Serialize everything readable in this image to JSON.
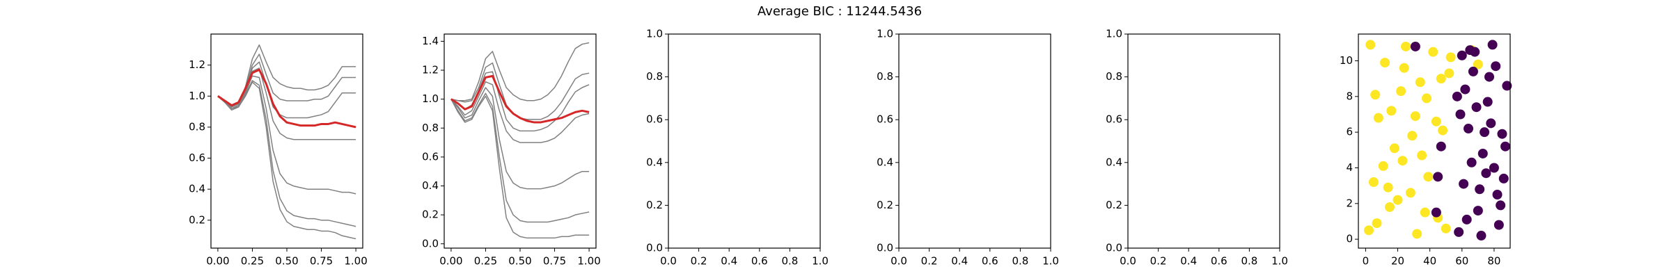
{
  "title": "Average BIC : 11244.5436",
  "chart_data": [
    {
      "type": "line",
      "x": [
        0,
        0.05,
        0.1,
        0.15,
        0.2,
        0.25,
        0.3,
        0.35,
        0.4,
        0.45,
        0.5,
        0.55,
        0.6,
        0.65,
        0.7,
        0.75,
        0.8,
        0.85,
        0.9,
        0.95,
        1
      ],
      "xlim": [
        -0.05,
        1.05
      ],
      "xticks": [
        {
          "value": 0,
          "label": "0.00"
        },
        {
          "value": 0.25,
          "label": "0.25"
        },
        {
          "value": 0.5,
          "label": "0.50"
        },
        {
          "value": 0.75,
          "label": "0.75"
        },
        {
          "value": 1,
          "label": "1.00"
        }
      ],
      "ylim": [
        0.02,
        1.4
      ],
      "yticks": [
        0.2,
        0.4,
        0.6,
        0.8,
        {
          "value": 1,
          "label": "1.0"
        },
        1.2
      ],
      "series": [
        {
          "color": "#808080",
          "values": [
            1.0,
            0.97,
            0.93,
            0.95,
            1.06,
            1.24,
            1.33,
            1.22,
            1.12,
            1.08,
            1.06,
            1.05,
            1.05,
            1.04,
            1.04,
            1.05,
            1.07,
            1.12,
            1.19,
            1.19,
            1.19
          ]
        },
        {
          "color": "#808080",
          "values": [
            1.0,
            0.97,
            0.93,
            0.95,
            1.05,
            1.2,
            1.27,
            1.14,
            1.02,
            0.98,
            0.97,
            0.97,
            0.97,
            0.97,
            0.98,
            0.98,
            1.0,
            1.06,
            1.12,
            1.12,
            1.12
          ]
        },
        {
          "color": "#808080",
          "values": [
            1.0,
            0.97,
            0.93,
            0.95,
            1.04,
            1.18,
            1.22,
            1.08,
            0.93,
            0.88,
            0.86,
            0.86,
            0.86,
            0.86,
            0.87,
            0.88,
            0.9,
            0.96,
            1.02,
            1.02,
            1.02
          ]
        },
        {
          "color": "#808080",
          "values": [
            1.0,
            0.96,
            0.92,
            0.94,
            1.03,
            1.16,
            1.18,
            1.02,
            0.84,
            0.76,
            0.73,
            0.72,
            0.72,
            0.72,
            0.72,
            0.72,
            0.72,
            0.72,
            0.72,
            0.72,
            0.72
          ]
        },
        {
          "color": "#808080",
          "values": [
            1.0,
            0.96,
            0.92,
            0.94,
            1.02,
            1.13,
            1.12,
            0.92,
            0.65,
            0.5,
            0.44,
            0.42,
            0.41,
            0.4,
            0.4,
            0.4,
            0.4,
            0.39,
            0.38,
            0.38,
            0.37
          ]
        },
        {
          "color": "#808080",
          "values": [
            1.0,
            0.96,
            0.92,
            0.93,
            1.01,
            1.1,
            1.07,
            0.85,
            0.52,
            0.34,
            0.26,
            0.23,
            0.22,
            0.21,
            0.21,
            0.2,
            0.2,
            0.19,
            0.18,
            0.17,
            0.16
          ]
        },
        {
          "color": "#808080",
          "values": [
            1.0,
            0.96,
            0.91,
            0.93,
            1.0,
            1.09,
            1.05,
            0.8,
            0.45,
            0.27,
            0.19,
            0.16,
            0.15,
            0.14,
            0.14,
            0.13,
            0.13,
            0.12,
            0.1,
            0.09,
            0.08
          ]
        },
        {
          "color": "#d62728",
          "width": 3,
          "values": [
            1.0,
            0.97,
            0.94,
            0.96,
            1.05,
            1.15,
            1.17,
            1.08,
            0.95,
            0.87,
            0.83,
            0.82,
            0.81,
            0.81,
            0.81,
            0.82,
            0.82,
            0.83,
            0.82,
            0.81,
            0.8
          ]
        }
      ]
    },
    {
      "type": "line",
      "x": [
        0,
        0.05,
        0.1,
        0.15,
        0.2,
        0.25,
        0.3,
        0.35,
        0.4,
        0.45,
        0.5,
        0.55,
        0.6,
        0.65,
        0.7,
        0.75,
        0.8,
        0.85,
        0.9,
        0.95,
        1
      ],
      "xlim": [
        -0.05,
        1.05
      ],
      "xticks": [
        {
          "value": 0,
          "label": "0.00"
        },
        {
          "value": 0.25,
          "label": "0.25"
        },
        {
          "value": 0.5,
          "label": "0.50"
        },
        {
          "value": 0.75,
          "label": "0.75"
        },
        {
          "value": 1,
          "label": "1.00"
        }
      ],
      "ylim": [
        -0.03,
        1.45
      ],
      "yticks": [
        {
          "value": 0,
          "label": "0.0"
        },
        0.2,
        0.4,
        0.6,
        0.8,
        {
          "value": 1,
          "label": "1.0"
        },
        1.2,
        1.4
      ],
      "series": [
        {
          "color": "#808080",
          "values": [
            1.0,
            0.99,
            0.99,
            1.0,
            1.12,
            1.28,
            1.33,
            1.2,
            1.08,
            1.03,
            1.0,
            0.99,
            0.99,
            1.0,
            1.03,
            1.08,
            1.16,
            1.26,
            1.35,
            1.38,
            1.39
          ]
        },
        {
          "color": "#808080",
          "values": [
            1.0,
            0.99,
            0.98,
            0.99,
            1.08,
            1.22,
            1.25,
            1.1,
            0.96,
            0.9,
            0.87,
            0.86,
            0.86,
            0.86,
            0.88,
            0.92,
            0.98,
            1.06,
            1.14,
            1.17,
            1.18
          ]
        },
        {
          "color": "#808080",
          "values": [
            1.0,
            0.97,
            0.93,
            0.96,
            1.06,
            1.18,
            1.19,
            1.02,
            0.86,
            0.8,
            0.78,
            0.78,
            0.78,
            0.79,
            0.81,
            0.85,
            0.9,
            0.98,
            1.05,
            1.08,
            1.1
          ]
        },
        {
          "color": "#808080",
          "values": [
            1.0,
            0.95,
            0.89,
            0.92,
            1.02,
            1.12,
            1.1,
            0.92,
            0.78,
            0.72,
            0.7,
            0.7,
            0.7,
            0.7,
            0.71,
            0.73,
            0.77,
            0.82,
            0.87,
            0.89,
            0.9
          ]
        },
        {
          "color": "#808080",
          "values": [
            1.0,
            0.94,
            0.87,
            0.89,
            0.99,
            1.08,
            1.02,
            0.72,
            0.5,
            0.42,
            0.39,
            0.38,
            0.38,
            0.38,
            0.39,
            0.4,
            0.42,
            0.45,
            0.48,
            0.5,
            0.5
          ]
        },
        {
          "color": "#808080",
          "values": [
            1.0,
            0.92,
            0.85,
            0.87,
            0.96,
            1.04,
            0.95,
            0.6,
            0.3,
            0.2,
            0.16,
            0.15,
            0.15,
            0.15,
            0.15,
            0.16,
            0.17,
            0.18,
            0.2,
            0.21,
            0.22
          ]
        },
        {
          "color": "#808080",
          "values": [
            1.0,
            0.91,
            0.84,
            0.86,
            0.95,
            1.02,
            0.92,
            0.52,
            0.18,
            0.08,
            0.05,
            0.04,
            0.04,
            0.04,
            0.04,
            0.04,
            0.05,
            0.05,
            0.06,
            0.06,
            0.06
          ]
        },
        {
          "color": "#d62728",
          "width": 3,
          "values": [
            1.0,
            0.97,
            0.93,
            0.95,
            1.05,
            1.15,
            1.16,
            1.05,
            0.95,
            0.9,
            0.87,
            0.85,
            0.84,
            0.84,
            0.85,
            0.86,
            0.87,
            0.89,
            0.91,
            0.92,
            0.91
          ]
        }
      ]
    },
    {
      "type": "empty",
      "xlim": [
        0,
        1
      ],
      "ylim": [
        0,
        1
      ],
      "xticks": [
        {
          "value": 0,
          "label": "0.0"
        },
        0.2,
        0.4,
        0.6,
        0.8,
        {
          "value": 1,
          "label": "1.0"
        }
      ],
      "yticks": [
        {
          "value": 0,
          "label": "0.0"
        },
        0.2,
        0.4,
        0.6,
        0.8,
        {
          "value": 1,
          "label": "1.0"
        }
      ]
    },
    {
      "type": "empty",
      "xlim": [
        0,
        1
      ],
      "ylim": [
        0,
        1
      ],
      "xticks": [
        {
          "value": 0,
          "label": "0.0"
        },
        0.2,
        0.4,
        0.6,
        0.8,
        {
          "value": 1,
          "label": "1.0"
        }
      ],
      "yticks": [
        {
          "value": 0,
          "label": "0.0"
        },
        0.2,
        0.4,
        0.6,
        0.8,
        {
          "value": 1,
          "label": "1.0"
        }
      ]
    },
    {
      "type": "empty",
      "xlim": [
        0,
        1
      ],
      "ylim": [
        0,
        1
      ],
      "xticks": [
        {
          "value": 0,
          "label": "0.0"
        },
        0.2,
        0.4,
        0.6,
        0.8,
        {
          "value": 1,
          "label": "1.0"
        }
      ],
      "yticks": [
        {
          "value": 0,
          "label": "0.0"
        },
        0.2,
        0.4,
        0.6,
        0.8,
        {
          "value": 1,
          "label": "1.0"
        }
      ]
    },
    {
      "type": "scatter",
      "xlim": [
        -4.5,
        90
      ],
      "ylim": [
        -0.5,
        11.5
      ],
      "xticks": [
        0,
        20,
        40,
        60,
        80
      ],
      "yticks": [
        0,
        2,
        4,
        6,
        8,
        10
      ],
      "series": [
        {
          "color": "#fde725",
          "x": [
            2,
            5,
            8,
            12,
            15,
            18,
            22,
            25,
            28,
            32,
            35,
            38,
            42,
            45,
            48,
            52,
            3,
            7,
            11,
            16,
            20,
            24,
            29,
            34,
            39,
            44,
            50,
            53,
            6,
            14,
            23,
            31,
            37,
            47,
            66,
            70
          ],
          "values": [
            0.5,
            3.2,
            6.8,
            9.9,
            1.8,
            5.1,
            8.3,
            10.8,
            2.6,
            0.3,
            4.7,
            7.9,
            10.5,
            1.2,
            6.1,
            9.3,
            10.9,
            0.9,
            4.1,
            7.2,
            2.2,
            9.6,
            5.8,
            8.8,
            3.5,
            6.6,
            0.6,
            10.2,
            8.1,
            2.9,
            4.4,
            6.9,
            1.5,
            9.0,
            10.6,
            9.8
          ]
        },
        {
          "color": "#440154",
          "x": [
            58,
            61,
            64,
            67,
            70,
            73,
            76,
            79,
            82,
            85,
            88,
            60,
            63,
            66,
            69,
            72,
            75,
            78,
            81,
            84,
            87,
            59,
            65,
            71,
            77,
            83,
            86,
            62,
            74,
            80,
            44,
            45,
            31,
            47,
            68,
            57
          ],
          "values": [
            0.4,
            3.1,
            6.2,
            9.4,
            1.6,
            4.8,
            7.7,
            10.9,
            2.5,
            5.9,
            8.6,
            10.3,
            1.1,
            4.3,
            7.4,
            0.2,
            3.7,
            6.5,
            9.7,
            1.9,
            5.2,
            7.0,
            10.6,
            2.8,
            9.1,
            0.8,
            3.4,
            8.4,
            6.0,
            4.0,
            1.5,
            3.5,
            10.8,
            5.2,
            10.5,
            8.0
          ]
        }
      ]
    }
  ]
}
